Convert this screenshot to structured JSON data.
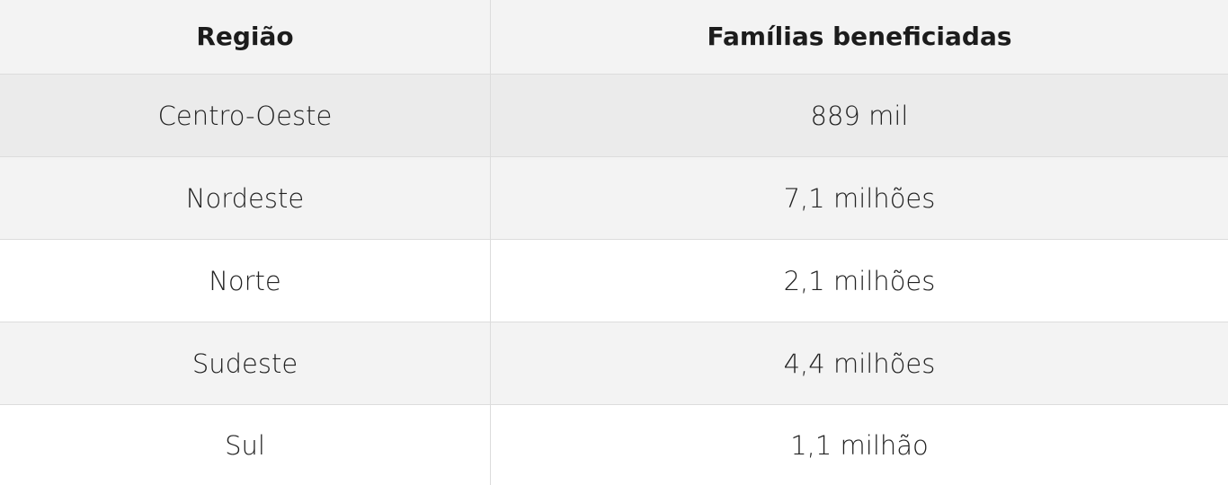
{
  "table": {
    "headers": {
      "region": "Região",
      "families": "Famílias beneficiadas"
    },
    "rows": [
      {
        "region": "Centro-Oeste",
        "families": "889 mil"
      },
      {
        "region": "Nordeste",
        "families": "7,1 milhões"
      },
      {
        "region": "Norte",
        "families": "2,1 milhões"
      },
      {
        "region": "Sudeste",
        "families": "4,4 milhões"
      },
      {
        "region": "Sul",
        "families": "1,1 milhão"
      }
    ]
  },
  "colors": {
    "header_bg": "#f3f3f3",
    "row_highlight_bg": "#ebebeb",
    "row_alt_bg": "#f3f3f3",
    "row_bg": "#ffffff",
    "border": "#dcdcdc",
    "text": "#222222"
  }
}
